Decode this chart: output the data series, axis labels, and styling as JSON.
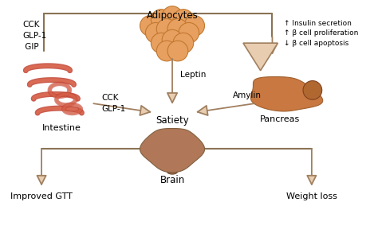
{
  "bg_color": "#ffffff",
  "arrow_face_color": "#e8cdb0",
  "arrow_edge_color": "#a08060",
  "line_color": "#8b7355",
  "text_color": "#000000",
  "labels": {
    "adipocytes": "Adipocytes",
    "intestine": "Intestine",
    "pancreas": "Pancreas",
    "satiety": "Satiety",
    "brain": "Brain",
    "improved_gtt": "Improved GTT",
    "weight_loss": "Weight loss",
    "leptin": "Leptin",
    "cck_glp1_top": "CCK\nGLP-1\n GIP",
    "cck_glp1_mid": "CCK\nGLP-1",
    "amylin": "Amylin",
    "pancreas_effects": "↑ Insulin secretion\n↑ β cell proliferation\n↓ β cell apoptosis"
  },
  "adipocyte_color": "#e8a060",
  "adipocyte_edge": "#c07830",
  "intestine_color1": "#d4604a",
  "intestine_color2": "#e8a080",
  "pancreas_color": "#c87840",
  "brain_color": "#b08060"
}
